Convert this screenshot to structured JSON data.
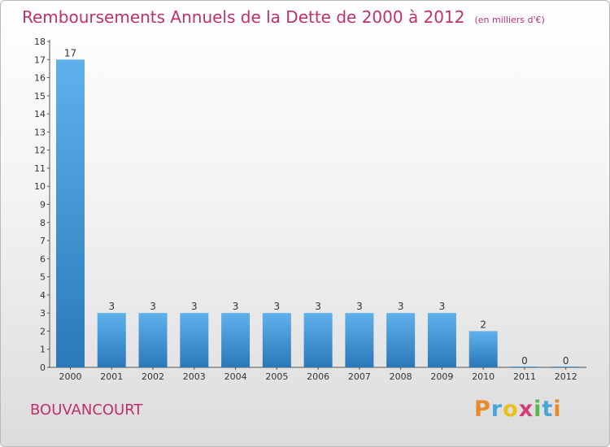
{
  "header": {
    "title": "Remboursements Annuels de la Dette de 2000 à 2012",
    "unit": "(en milliers d'€)"
  },
  "location": "BOUVANCOURT",
  "brand": {
    "letters": [
      "P",
      "r",
      "o",
      "x",
      "i",
      "t",
      "i"
    ],
    "colors": [
      "#e8892c",
      "#4aa5d8",
      "#e8c11c",
      "#d23f7a",
      "#57b84c",
      "#4aa5d8",
      "#e8892c"
    ]
  },
  "colors": {
    "bar_top": "#5fb1ec",
    "bar_bottom": "#2b78b8",
    "title": "#c0306b"
  },
  "chart_data": {
    "type": "bar",
    "title": "Remboursements Annuels de la Dette de 2000 à 2012",
    "categories": [
      "2000",
      "2001",
      "2002",
      "2003",
      "2004",
      "2005",
      "2006",
      "2007",
      "2008",
      "2009",
      "2010",
      "2011",
      "2012"
    ],
    "values": [
      17,
      3,
      3,
      3,
      3,
      3,
      3,
      3,
      3,
      3,
      2,
      0,
      0
    ],
    "data_labels": [
      "17",
      "3",
      "3",
      "3",
      "3",
      "3",
      "3",
      "3",
      "3",
      "3",
      "2",
      "0",
      "0"
    ],
    "yticks": [
      "0",
      "1",
      "2",
      "3",
      "4",
      "5",
      "6",
      "7",
      "8",
      "9",
      "10",
      "11",
      "12",
      "13",
      "14",
      "15",
      "16",
      "17",
      "18"
    ],
    "ylim": [
      0,
      18
    ],
    "xlabel": "",
    "ylabel": "",
    "grid": false,
    "legend": "none"
  }
}
